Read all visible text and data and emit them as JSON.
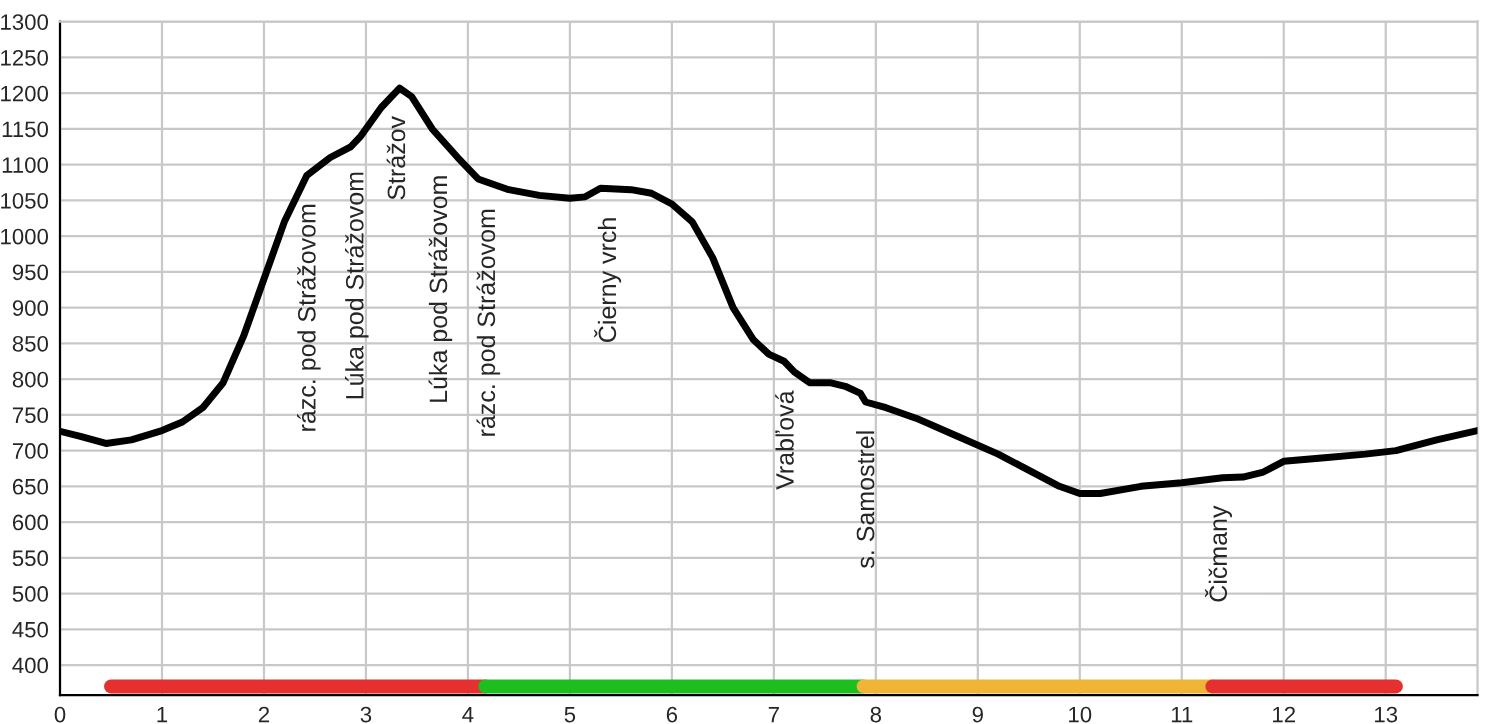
{
  "chart_data": {
    "type": "line",
    "xlim": [
      0,
      13.9
    ],
    "ylim": [
      358,
      1300
    ],
    "xticks": [
      0,
      1,
      2,
      3,
      4,
      5,
      6,
      7,
      8,
      9,
      10,
      11,
      12,
      13
    ],
    "yticks": [
      400,
      450,
      500,
      550,
      600,
      650,
      700,
      750,
      800,
      850,
      900,
      950,
      1000,
      1050,
      1100,
      1150,
      1200,
      1250,
      1300
    ],
    "grid": true,
    "marker": "none",
    "line_style": "solid",
    "series": [
      {
        "color": "#000000",
        "x": [
          0,
          0.2,
          0.45,
          0.7,
          1,
          1.2,
          1.4,
          1.6,
          1.8,
          2.0,
          2.2,
          2.42,
          2.65,
          2.85,
          2.95,
          3.15,
          3.33,
          3.45,
          3.65,
          3.9,
          4.1,
          4.4,
          4.7,
          5.0,
          5.15,
          5.3,
          5.6,
          5.8,
          6.0,
          6.2,
          6.4,
          6.6,
          6.8,
          6.95,
          7.1,
          7.2,
          7.35,
          7.55,
          7.7,
          7.85,
          7.9,
          8.1,
          8.4,
          8.8,
          9.2,
          9.6,
          9.8,
          10.0,
          10.2,
          10.6,
          11.0,
          11.4,
          11.6,
          11.8,
          12.0,
          12.4,
          12.8,
          13.1,
          13.5,
          13.9
        ],
        "values": [
          727,
          720,
          710,
          715,
          728,
          740,
          760,
          795,
          860,
          940,
          1020,
          1085,
          1110,
          1125,
          1140,
          1180,
          1207,
          1195,
          1150,
          1110,
          1080,
          1065,
          1057,
          1053,
          1055,
          1067,
          1065,
          1060,
          1045,
          1020,
          970,
          900,
          855,
          835,
          825,
          810,
          795,
          795,
          790,
          780,
          768,
          760,
          745,
          720,
          695,
          665,
          650,
          640,
          640,
          650,
          655,
          662,
          663,
          670,
          685,
          690,
          695,
          700,
          715,
          728
        ]
      },
      {
        "color": "#e53030",
        "x": [
          0.5,
          4.17
        ],
        "values": [
          370,
          370
        ]
      },
      {
        "color": "#1ebe1e",
        "x": [
          4.17,
          7.88
        ],
        "values": [
          370,
          370
        ]
      },
      {
        "color": "#f0b436",
        "x": [
          7.88,
          11.3
        ],
        "values": [
          370,
          370
        ]
      },
      {
        "color": "#e53030",
        "x": [
          11.3,
          13.1
        ],
        "values": [
          370,
          370
        ]
      }
    ],
    "annotations": [
      {
        "text": "rázc. pod Strážovom",
        "x": 2.44,
        "y": 1085
      },
      {
        "text": "Lúka pod Strážovom",
        "x": 2.91,
        "y": 1130
      },
      {
        "text": "Strážov",
        "x": 3.32,
        "y": 1207
      },
      {
        "text": "Lúka pod Strážovom",
        "x": 3.73,
        "y": 1125
      },
      {
        "text": "rázc. pod Strážovom",
        "x": 4.2,
        "y": 1078
      },
      {
        "text": "Čierny vrch",
        "x": 5.37,
        "y": 1066
      },
      {
        "text": "Vrabľová",
        "x": 7.13,
        "y": 823
      },
      {
        "text": "s. Samostrel",
        "x": 7.92,
        "y": 768
      },
      {
        "text": "Čičmany",
        "x": 11.36,
        "y": 662
      }
    ]
  }
}
